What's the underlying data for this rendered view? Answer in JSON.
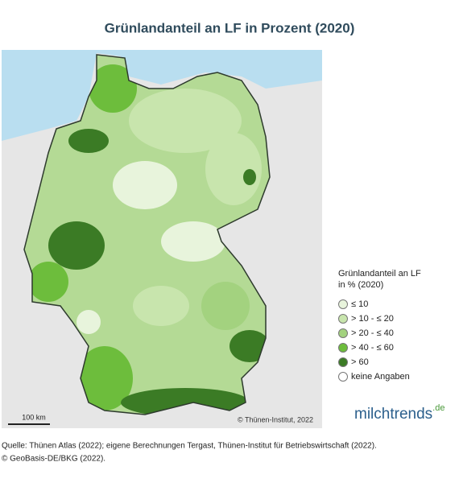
{
  "header": {
    "title": "Grünlandanteil an LF in Prozent (2020)"
  },
  "map": {
    "scale_label": "100 km",
    "copyright": "© Thünen-Institut, 2022"
  },
  "legend": {
    "title_lines": [
      "Grünlandanteil an LF",
      "in % (2020)"
    ],
    "items": [
      {
        "label": "≤ 10",
        "color": "#e8f4dc"
      },
      {
        "label": "> 10 - ≤ 20",
        "color": "#c8e5ad"
      },
      {
        "label": "> 20 - ≤ 40",
        "color": "#a3d27f"
      },
      {
        "label": "> 40 - ≤ 60",
        "color": "#6dbd3c"
      },
      {
        "label": "> 60",
        "color": "#3b7b25"
      },
      {
        "label": "keine Angaben",
        "color": "#ffffff"
      }
    ]
  },
  "logo": {
    "name": "milchtrends",
    "suffix": ".de"
  },
  "source": {
    "lines": [
      "Quelle: Thünen Atlas (2022); eigene Berechnungen Tergast, Thünen-Institut für Betriebswirtschaft (2022).",
      "© GeoBasis-DE/BKG (2022)."
    ]
  }
}
